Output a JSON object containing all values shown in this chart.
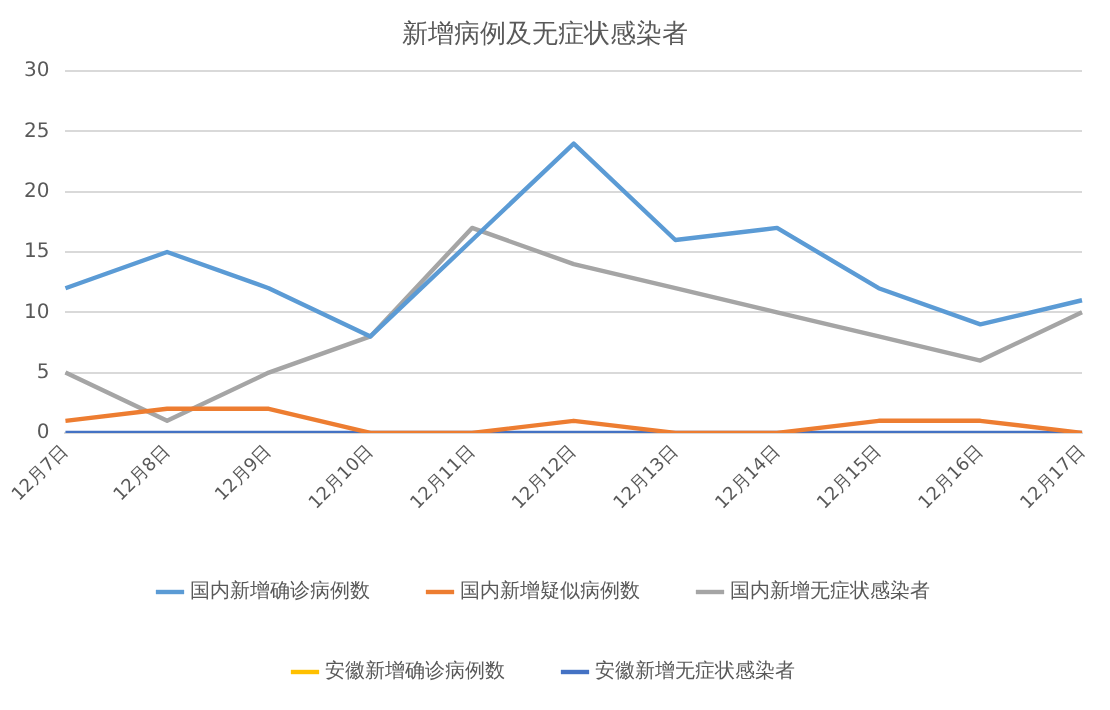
{
  "chart_data": {
    "type": "line",
    "title": "新增病例及无症状感染者",
    "categories": [
      "12月7日",
      "12月8日",
      "12月9日",
      "12月10日",
      "12月11日",
      "12月12日",
      "12月13日",
      "12月14日",
      "12月15日",
      "12月16日",
      "12月17日"
    ],
    "series": [
      {
        "name": "国内新增确诊病例数",
        "color": "#5b9bd5",
        "values": [
          12,
          15,
          12,
          8,
          16,
          24,
          16,
          17,
          12,
          9,
          11
        ]
      },
      {
        "name": "国内新增疑似病例数",
        "color": "#ed7d31",
        "values": [
          1,
          2,
          2,
          0,
          0,
          1,
          0,
          0,
          1,
          1,
          0
        ]
      },
      {
        "name": "国内新增无症状感染者",
        "color": "#a5a5a5",
        "values": [
          5,
          1,
          5,
          8,
          17,
          14,
          12,
          10,
          8,
          6,
          10
        ]
      },
      {
        "name": "安徽新增确诊病例数",
        "color": "#ffc000",
        "values": [
          null,
          null,
          null,
          null,
          null,
          null,
          null,
          null,
          null,
          null,
          null
        ]
      },
      {
        "name": "安徽新增无症状感染者",
        "color": "#4472c4",
        "values": [
          0,
          0,
          0,
          0,
          0,
          0,
          0,
          0,
          0,
          0,
          0
        ]
      }
    ],
    "ylim": [
      0,
      30
    ],
    "yticks": [
      0,
      5,
      10,
      15,
      20,
      25,
      30
    ],
    "grid": "y",
    "legend": "bottom",
    "marker": "none",
    "line_style": "solid"
  }
}
